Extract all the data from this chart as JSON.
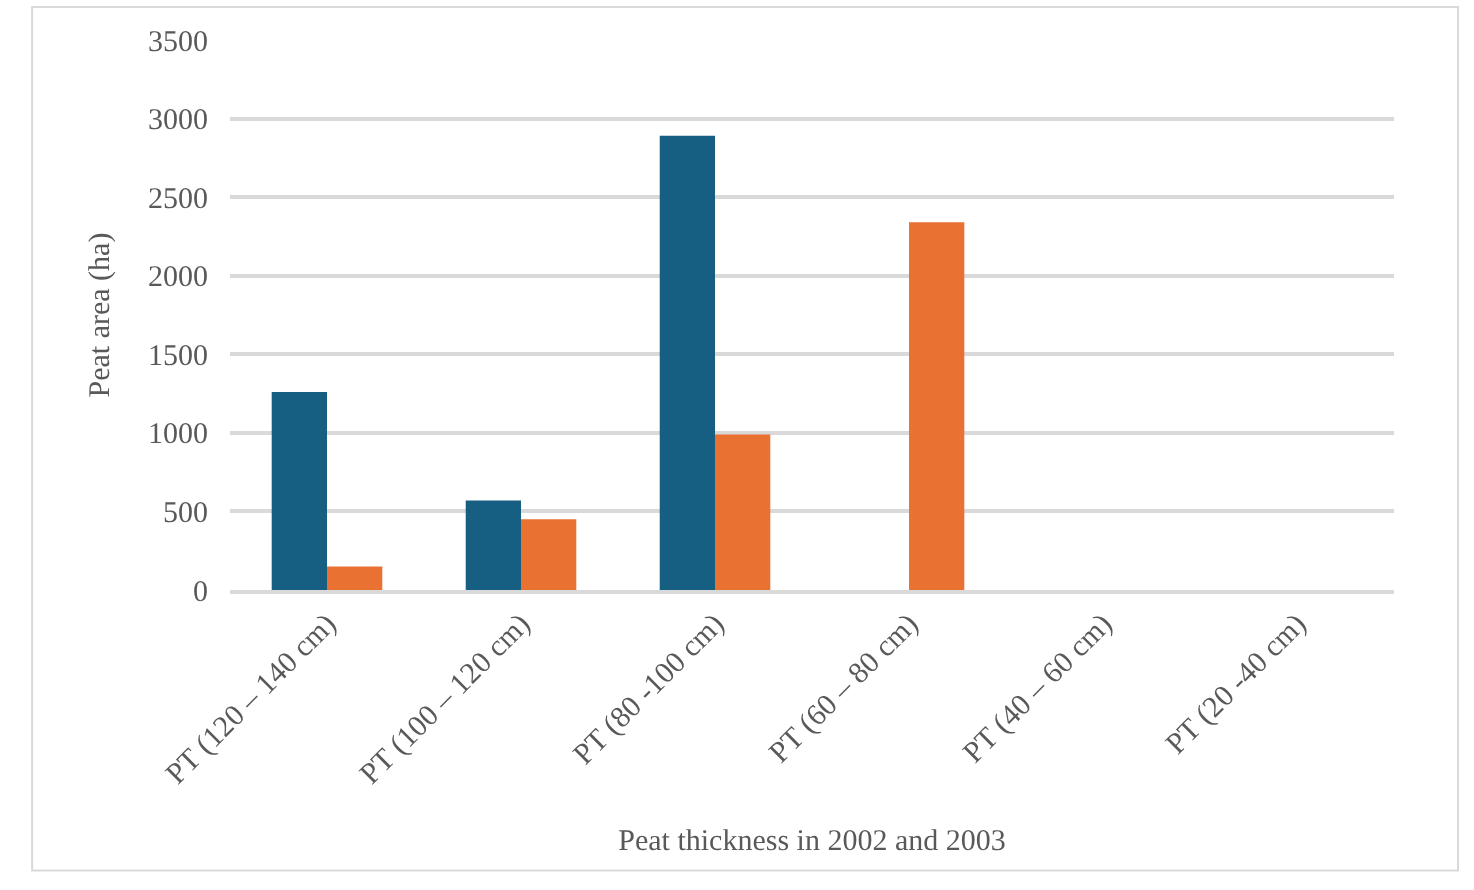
{
  "chart_data": {
    "type": "bar",
    "xlabel": "Peat thickness in 2002 and 2003",
    "ylabel": "Peat area (ha)",
    "categories": [
      "PT (120 – 140 cm)",
      "PT (100 – 120 cm)",
      "PT (80 -100 cm)",
      "PT (60 – 80 cm)",
      "PT (40 – 60 cm)",
      "PT (20 -40 cm)"
    ],
    "series": [
      {
        "color": "#175f82",
        "values": [
          1260,
          570,
          2890,
          0,
          0,
          0
        ]
      },
      {
        "color": "#e97132",
        "values": [
          150,
          450,
          990,
          2340,
          0,
          0
        ]
      }
    ],
    "ylim": [
      0,
      3500
    ],
    "yticks": [
      0,
      500,
      1000,
      1500,
      2000,
      2500,
      3000,
      3500
    ],
    "grid": "y"
  }
}
